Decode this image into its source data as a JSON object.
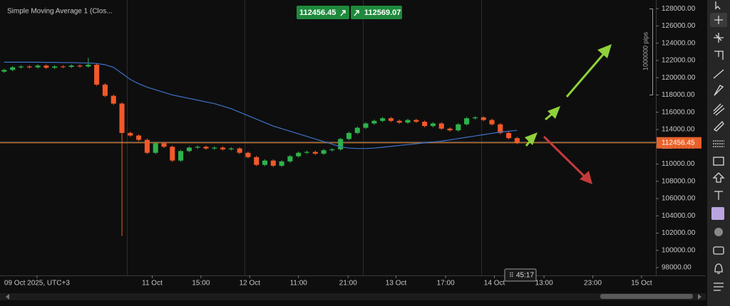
{
  "chart_data": {
    "type": "candlestick",
    "title": "Simple Moving Average 1 (Clos...",
    "bid": 112456.45,
    "ask": 112569.07,
    "current_price": 112456.45,
    "countdown": "45:17",
    "range_label": "1000000 pips",
    "up_color": "#2fb24c",
    "down_color": "#f2592a",
    "x": [
      0,
      1,
      2,
      3,
      4,
      5,
      6,
      7,
      8,
      9,
      10,
      11,
      12,
      13,
      14,
      15,
      16,
      17,
      18,
      19,
      20,
      21,
      22,
      23,
      24,
      25,
      26,
      27,
      28,
      29,
      30,
      31,
      32,
      33,
      34,
      35,
      36,
      37,
      38,
      39,
      40,
      41,
      42,
      43,
      44,
      45,
      46,
      47,
      48,
      49,
      50,
      51,
      52,
      53,
      54,
      55,
      56,
      57,
      58,
      59,
      60,
      61
    ],
    "open": [
      120700,
      120900,
      121200,
      121300,
      121200,
      121400,
      121150,
      121300,
      121250,
      121400,
      121300,
      121500,
      119200,
      117900,
      117000,
      113600,
      113300,
      112800,
      111300,
      112400,
      112000,
      110400,
      111500,
      111900,
      112000,
      111800,
      111900,
      111700,
      111800,
      111300,
      110800,
      109900,
      110400,
      109800,
      110300,
      110900,
      111300,
      111400,
      111200,
      111600,
      111700,
      112900,
      113600,
      114200,
      114700,
      115000,
      115300,
      115000,
      114800,
      115100,
      114900,
      114400,
      114700,
      114100,
      113900,
      114600,
      115300,
      115400,
      115100,
      114600,
      113600,
      113000
    ],
    "high": [
      121050,
      121350,
      121450,
      121450,
      121550,
      121550,
      121450,
      121450,
      121550,
      121550,
      122300,
      121650,
      119350,
      118050,
      117150,
      113750,
      113450,
      112950,
      112550,
      112550,
      112150,
      111650,
      112050,
      112150,
      112150,
      112050,
      112050,
      111950,
      111950,
      111450,
      110950,
      110550,
      110550,
      110450,
      111050,
      111450,
      111550,
      111550,
      111750,
      111850,
      113050,
      113750,
      114350,
      114850,
      115150,
      115450,
      115450,
      115150,
      115250,
      115250,
      115050,
      114850,
      114850,
      114250,
      114750,
      115450,
      115550,
      115550,
      115250,
      114750,
      113750,
      113150
    ],
    "low": [
      120550,
      120750,
      121050,
      121050,
      121050,
      121000,
      121000,
      121100,
      121100,
      121150,
      121150,
      119050,
      117750,
      116850,
      101650,
      113150,
      112650,
      111150,
      111150,
      111850,
      110250,
      110250,
      111350,
      111750,
      111650,
      111650,
      111550,
      111550,
      111150,
      110650,
      109750,
      109750,
      109650,
      109650,
      110150,
      110750,
      111150,
      111050,
      111050,
      111450,
      111550,
      112750,
      113450,
      114050,
      114550,
      114850,
      114850,
      114650,
      114650,
      114750,
      114250,
      114250,
      113950,
      113750,
      113750,
      114450,
      115150,
      114950,
      114450,
      113450,
      112850,
      112300
    ],
    "close": [
      120900,
      121200,
      121300,
      121200,
      121400,
      121150,
      121300,
      121250,
      121400,
      121300,
      121500,
      119200,
      117900,
      117000,
      113600,
      113300,
      112800,
      111300,
      112400,
      112000,
      110400,
      111500,
      111900,
      112000,
      111800,
      111900,
      111700,
      111800,
      111300,
      110800,
      109900,
      110400,
      109800,
      110300,
      110900,
      111300,
      111400,
      111200,
      111600,
      111700,
      112900,
      113600,
      114200,
      114700,
      115000,
      115300,
      115000,
      114800,
      115100,
      114900,
      114400,
      114700,
      114100,
      113900,
      114600,
      115300,
      115400,
      115100,
      114600,
      113600,
      113000,
      112456.45
    ],
    "indicator": {
      "color": "#3f72c8",
      "values": [
        121800,
        121800,
        121800,
        121800,
        121800,
        121780,
        121780,
        121750,
        121750,
        121720,
        121700,
        121650,
        121500,
        121200,
        120500,
        119800,
        119300,
        118900,
        118600,
        118300,
        118000,
        117800,
        117600,
        117400,
        117200,
        117000,
        116700,
        116400,
        116000,
        115600,
        115200,
        114800,
        114400,
        114100,
        113800,
        113500,
        113200,
        112900,
        112600,
        112300,
        112000,
        111850,
        111800,
        111800,
        111850,
        111950,
        112050,
        112150,
        112250,
        112350,
        112450,
        112550,
        112650,
        112800,
        112950,
        113100,
        113250,
        113400,
        113550,
        113700,
        113800,
        113900
      ]
    },
    "xlim": [
      -0.5,
      77.5
    ],
    "xticks": [
      {
        "value": 3.9,
        "label": "09 Oct 2025, UTC+3"
      },
      {
        "value": 17.6,
        "label": "11 Oct"
      },
      {
        "value": 23.4,
        "label": "15:00"
      },
      {
        "value": 29.2,
        "label": "12 Oct"
      },
      {
        "value": 35.0,
        "label": "11:00"
      },
      {
        "value": 40.9,
        "label": "21:00"
      },
      {
        "value": 46.6,
        "label": "13 Oct"
      },
      {
        "value": 52.5,
        "label": "17:00"
      },
      {
        "value": 58.3,
        "label": "14 Oct"
      },
      {
        "value": 64.2,
        "label": "13:00"
      },
      {
        "value": 70.0,
        "label": "23:00"
      },
      {
        "value": 75.8,
        "label": "15 Oct"
      }
    ],
    "ylim": [
      97100,
      129000
    ],
    "yticks": [
      {
        "value": 98000,
        "label": "98000.00"
      },
      {
        "value": 100000,
        "label": "100000.00"
      },
      {
        "value": 102000,
        "label": "102000.00"
      },
      {
        "value": 104000,
        "label": "104000.00"
      },
      {
        "value": 106000,
        "label": "106000.00"
      },
      {
        "value": 108000,
        "label": "108000.00"
      },
      {
        "value": 110000,
        "label": "110000.00"
      },
      {
        "value": 112000,
        "label": "112000.00"
      },
      {
        "value": 114000,
        "label": "114000.00"
      },
      {
        "value": 116000,
        "label": "116000.00"
      },
      {
        "value": 118000,
        "label": "118000.00"
      },
      {
        "value": 120000,
        "label": "120000.00"
      },
      {
        "value": 122000,
        "label": "122000.00"
      },
      {
        "value": 124000,
        "label": "124000.00"
      },
      {
        "value": 126000,
        "label": "126000.00"
      },
      {
        "value": 128000,
        "label": "128000.00"
      }
    ]
  }
}
